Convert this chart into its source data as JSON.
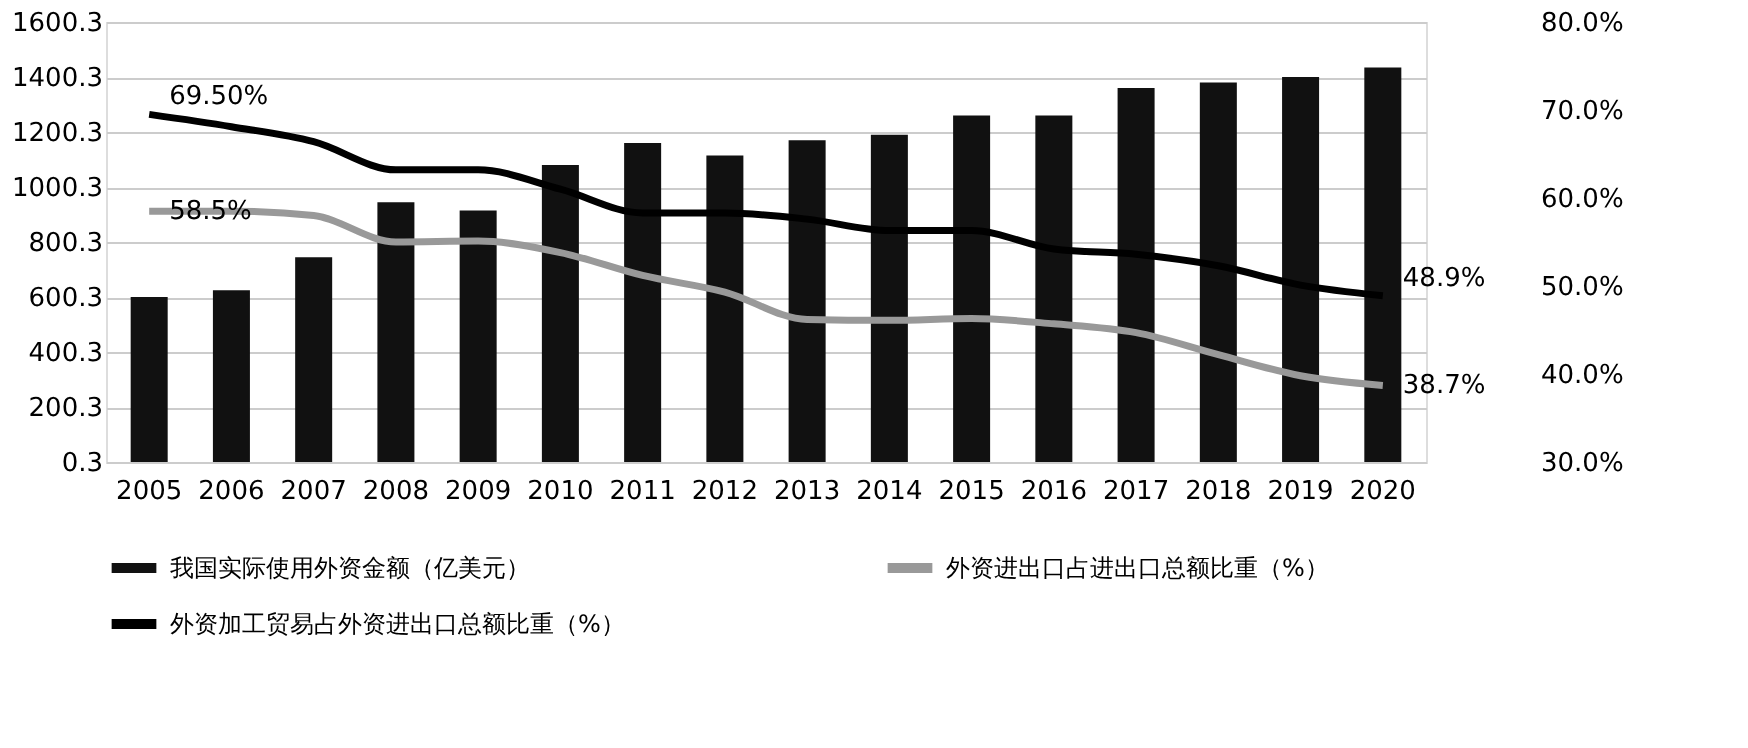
{
  "chart_data": {
    "type": "bar",
    "categories": [
      "2005",
      "2006",
      "2007",
      "2008",
      "2009",
      "2010",
      "2011",
      "2012",
      "2013",
      "2014",
      "2015",
      "2016",
      "2017",
      "2018",
      "2019",
      "2020"
    ],
    "series": [
      {
        "name": "我国实际使用外资金额（亿美元）",
        "color": "#111111",
        "values": [
          600,
          625,
          745,
          945,
          915,
          1080,
          1160,
          1115,
          1170,
          1190,
          1260,
          1260,
          1360,
          1380,
          1400,
          1435
        ]
      },
      {
        "name": "外资进出口占进出口总额比重（%）",
        "type": "line",
        "axis": "y2",
        "color": "#999999",
        "values": [
          58.5,
          58.5,
          58.0,
          55.0,
          55.1,
          53.8,
          51.2,
          49.3,
          46.2,
          46.1,
          46.3,
          45.7,
          44.7,
          42.2,
          39.8,
          38.7
        ],
        "value_labels": [
          "58.5%",
          null,
          null,
          null,
          null,
          null,
          null,
          null,
          null,
          null,
          null,
          null,
          null,
          null,
          null,
          "38.7%"
        ]
      },
      {
        "name": "外资加工贸易占外资进出口总额比重（%）",
        "type": "line",
        "axis": "y2",
        "color": "#000000",
        "values": [
          69.5,
          68.1,
          66.4,
          63.2,
          63.2,
          61.0,
          58.3,
          58.3,
          57.6,
          56.3,
          56.3,
          54.2,
          53.6,
          52.3,
          50.1,
          48.9
        ],
        "value_labels": [
          "69.50%",
          null,
          null,
          null,
          null,
          null,
          null,
          null,
          null,
          null,
          null,
          null,
          null,
          null,
          null,
          "48.9%"
        ]
      }
    ],
    "ylim": [
      0.3,
      1600.3
    ],
    "yticks": [
      {
        "value": 0.3,
        "label": "0.3"
      },
      {
        "value": 200.3,
        "label": "200.3"
      },
      {
        "value": 400.3,
        "label": "400.3"
      },
      {
        "value": 600.3,
        "label": "600.3"
      },
      {
        "value": 800.3,
        "label": "800.3"
      },
      {
        "value": 1000.3,
        "label": "1000.3"
      },
      {
        "value": 1200.3,
        "label": "1200.3"
      },
      {
        "value": 1400.3,
        "label": "1400.3"
      },
      {
        "value": 1600.3,
        "label": "1600.3"
      }
    ],
    "y2lim": [
      30,
      80
    ],
    "y2ticks": [
      {
        "value": 30,
        "label": "30.0%"
      },
      {
        "value": 40,
        "label": "40.0%"
      },
      {
        "value": 50,
        "label": "50.0%"
      },
      {
        "value": 60,
        "label": "60.0%"
      },
      {
        "value": 70,
        "label": "70.0%"
      },
      {
        "value": 80,
        "label": "80.0%"
      }
    ],
    "grid": "y",
    "legend": "bottom",
    "line_style": "solid",
    "marker": "none"
  }
}
